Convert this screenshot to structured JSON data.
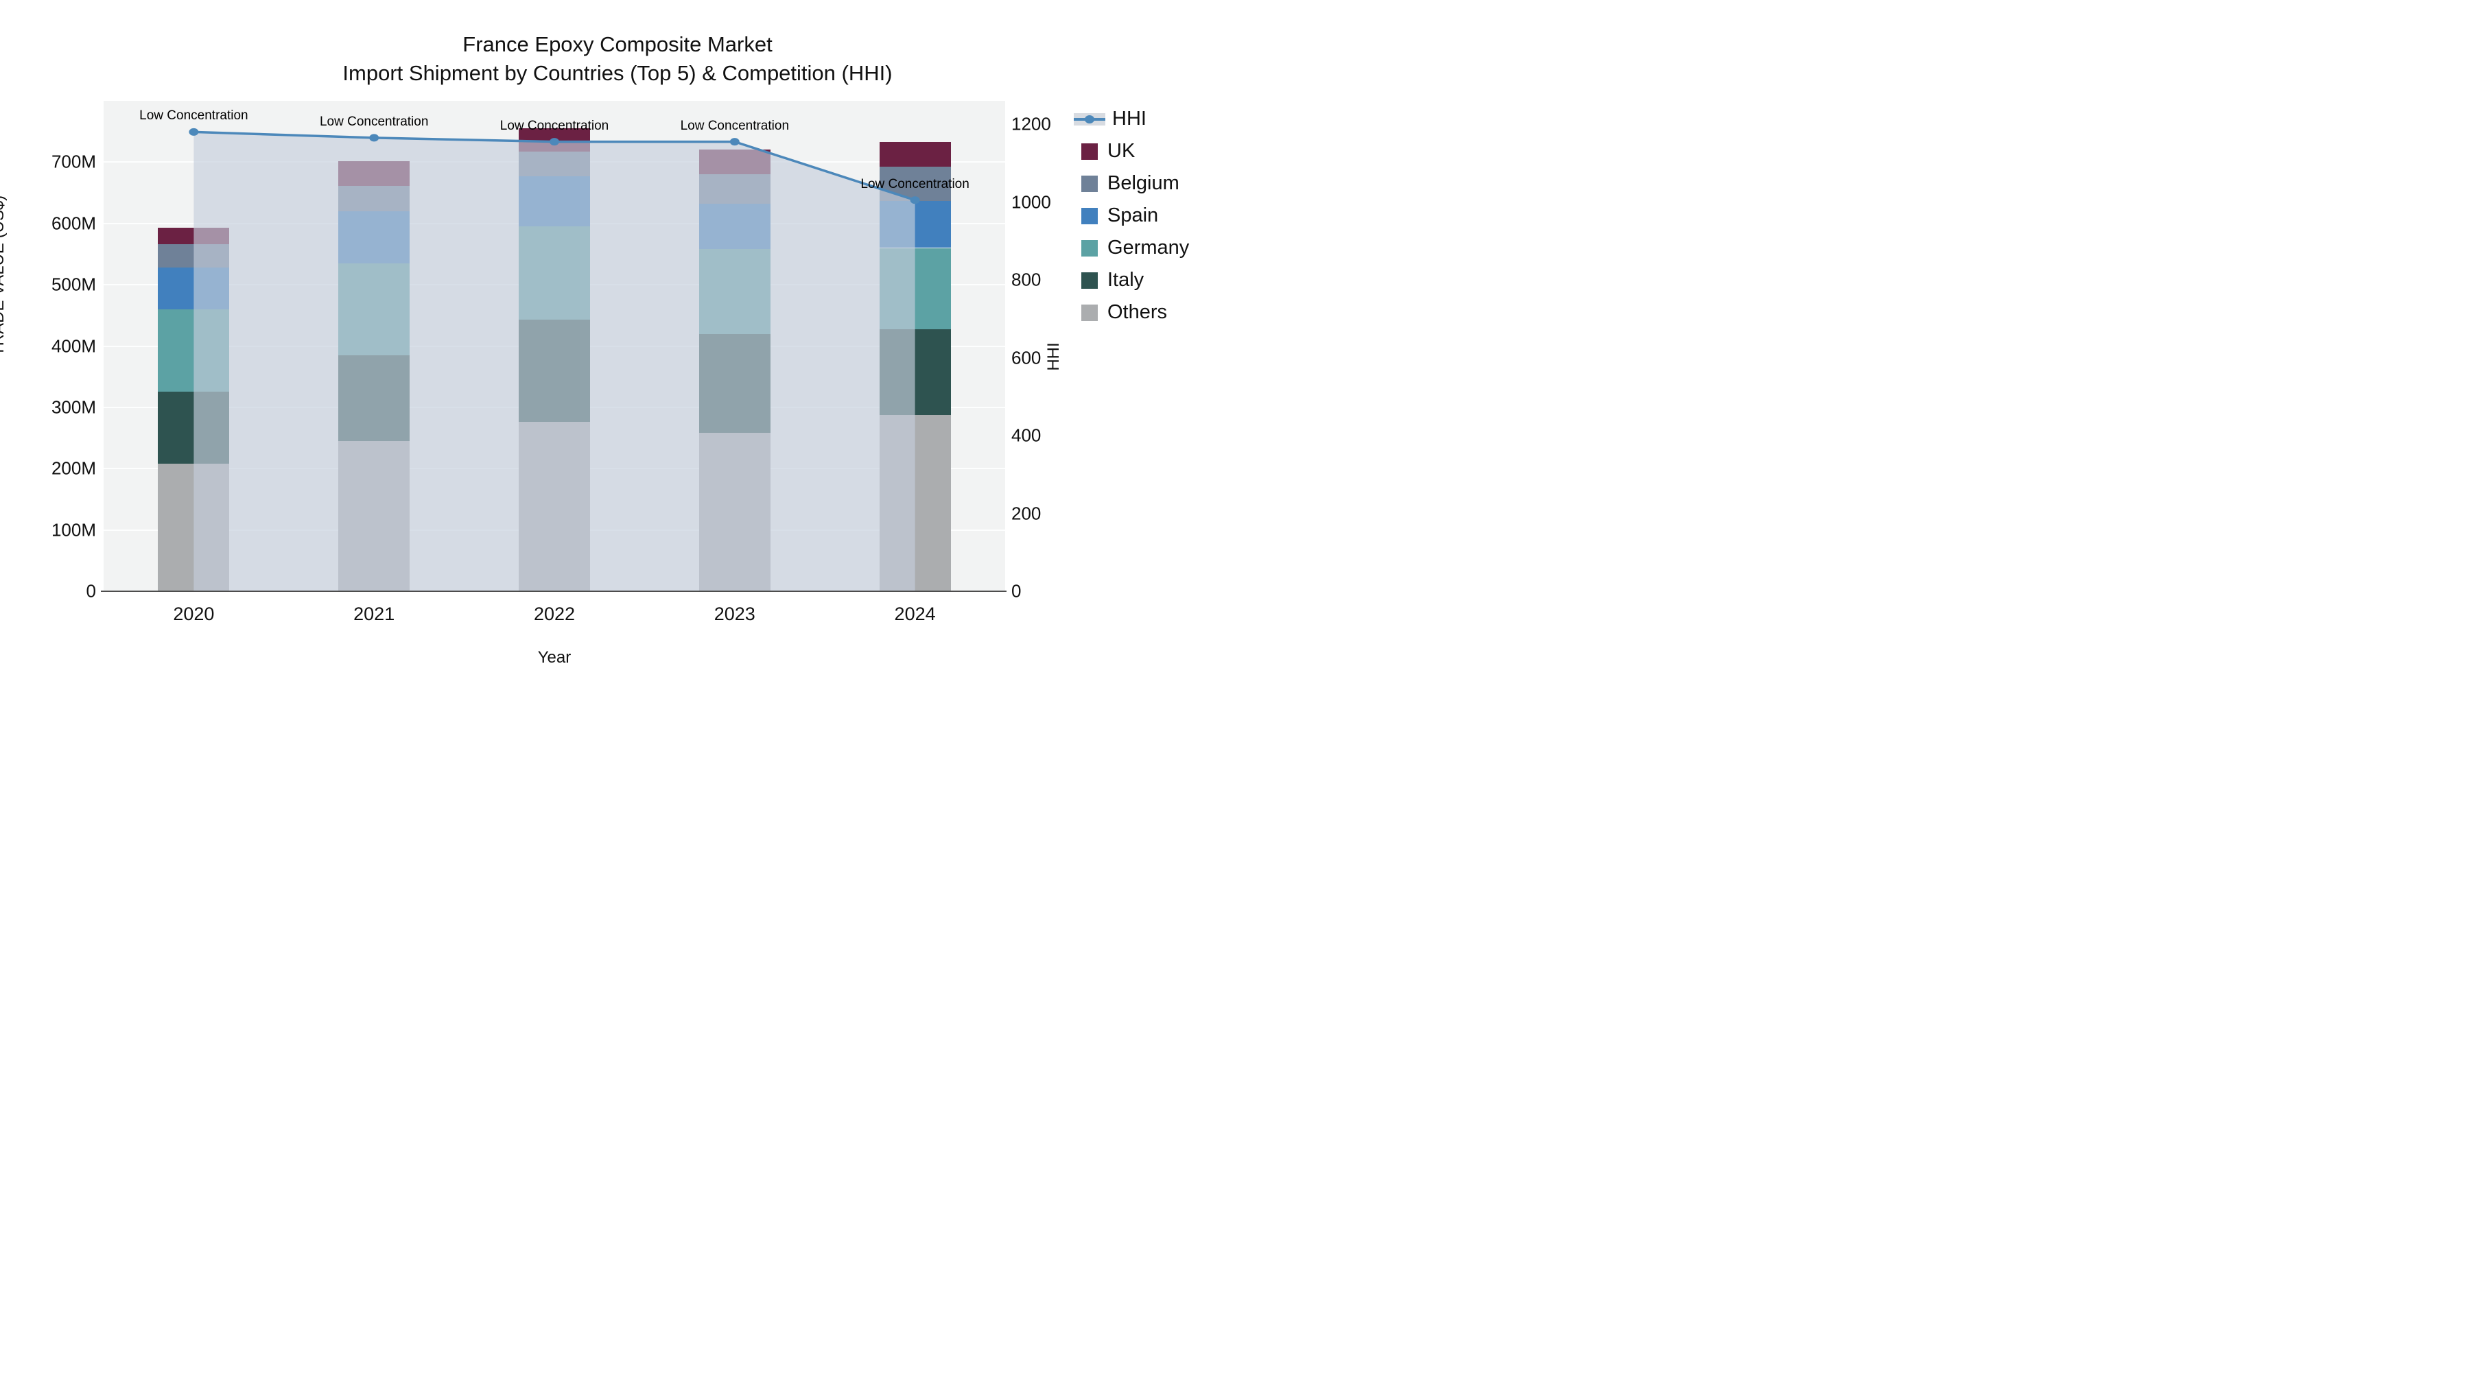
{
  "title": {
    "line1": "France Epoxy Composite Market",
    "line2": "Import Shipment by Countries (Top 5) & Competition (HHI)"
  },
  "axes": {
    "x": {
      "label": "Year"
    },
    "y_left": {
      "label": "TRADE VALUE (US$)",
      "tick_labels": [
        "0",
        "100M",
        "200M",
        "300M",
        "400M",
        "500M",
        "600M",
        "700M"
      ],
      "tick_values": [
        0,
        100,
        200,
        300,
        400,
        500,
        600,
        700
      ],
      "ylim": [
        0,
        800
      ]
    },
    "y_right": {
      "label": "HHI",
      "tick_labels": [
        "0",
        "200",
        "400",
        "600",
        "800",
        "1000",
        "1200"
      ],
      "tick_values": [
        0,
        200,
        400,
        600,
        800,
        1000,
        1200
      ],
      "ylim": [
        0,
        1260
      ]
    }
  },
  "chart_data": {
    "type": "bar",
    "subtype": "stacked-bars-with-line-overlay",
    "title": "France Epoxy Composite Market",
    "subtitle": "Import Shipment by Countries (Top 5) & Competition (HHI)",
    "xlabel": "Year",
    "ylabel_left": "TRADE VALUE (US$)",
    "ylabel_right": "HHI",
    "categories": [
      "2020",
      "2021",
      "2022",
      "2023",
      "2024"
    ],
    "stack_order_bottom_to_top": [
      "Others",
      "Italy",
      "Germany",
      "Spain",
      "Belgium",
      "UK"
    ],
    "series": [
      {
        "name": "Others",
        "color": "#ABADAF",
        "values": [
          208,
          245,
          276,
          259,
          287
        ]
      },
      {
        "name": "Italy",
        "color": "#2E5350",
        "values": [
          118,
          140,
          167,
          161,
          140
        ]
      },
      {
        "name": "Germany",
        "color": "#5CA2A4",
        "values": [
          134,
          150,
          152,
          138,
          133
        ]
      },
      {
        "name": "Spain",
        "color": "#4180BE",
        "values": [
          68,
          85,
          82,
          74,
          77
        ]
      },
      {
        "name": "Belgium",
        "color": "#6F8198",
        "values": [
          38,
          41,
          40,
          48,
          56
        ]
      },
      {
        "name": "UK",
        "color": "#6B2143",
        "values": [
          27,
          40,
          38,
          41,
          40
        ]
      }
    ],
    "bar_totals_musd": [
      593,
      701,
      755,
      721,
      733
    ],
    "line": {
      "name": "HHI",
      "color": "#4C88BA",
      "area_fill": "rgba(197,206,219,0.65)",
      "values": [
        1180,
        1165,
        1155,
        1155,
        1005
      ]
    },
    "annotations": [
      "Low Concentration",
      "Low Concentration",
      "Low Concentration",
      "Low Concentration",
      "Low Concentration"
    ],
    "grid": "horizontal-on",
    "legend_position": "right-outside"
  },
  "legend": {
    "items": [
      {
        "label": "HHI",
        "type": "line",
        "color": "#4C88BA"
      },
      {
        "label": "UK",
        "type": "swatch",
        "color": "#6B2143"
      },
      {
        "label": "Belgium",
        "type": "swatch",
        "color": "#6F8198"
      },
      {
        "label": "Spain",
        "type": "swatch",
        "color": "#4180BE"
      },
      {
        "label": "Germany",
        "type": "swatch",
        "color": "#5CA2A4"
      },
      {
        "label": "Italy",
        "type": "swatch",
        "color": "#2E5350"
      },
      {
        "label": "Others",
        "type": "swatch",
        "color": "#ABADAF"
      }
    ]
  }
}
